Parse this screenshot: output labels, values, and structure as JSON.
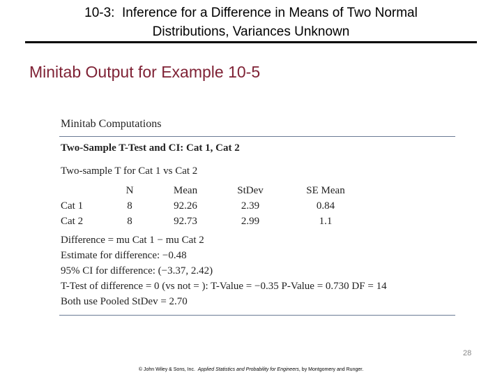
{
  "header": {
    "title_lines": [
      "10-3:  Inference for a Difference in Means of Two Normal",
      "Distributions, Variances Unknown"
    ],
    "subtitle": "Minitab Output for Example 10-5"
  },
  "output": {
    "heading": "Minitab Computations",
    "test_title": "Two-Sample T-Test and CI: Cat 1, Cat 2",
    "intro": "Two-sample T for Cat 1 vs Cat 2",
    "table": {
      "columns": [
        "N",
        "Mean",
        "StDev",
        "SE Mean"
      ],
      "rows": [
        [
          "Cat 1",
          8,
          92.26,
          2.39,
          0.84
        ],
        [
          "Cat 2",
          8,
          92.73,
          2.99,
          1.1
        ]
      ]
    },
    "lines": [
      "Difference = mu Cat 1 − mu Cat 2",
      "Estimate for difference: −0.48",
      "95% CI for difference: (−3.37, 2.42)",
      "T-Test of difference = 0 (vs not = ): T-Value = −0.35 P-Value = 0.730 DF = 14",
      "Both use Pooled StDev = 2.70"
    ]
  },
  "footer": {
    "page_number": 28,
    "parts": [
      "© John Wiley & Sons, Inc.  ",
      "Applied Statistics and Probability for Engineers",
      ", by Montgomery and Runger."
    ]
  }
}
